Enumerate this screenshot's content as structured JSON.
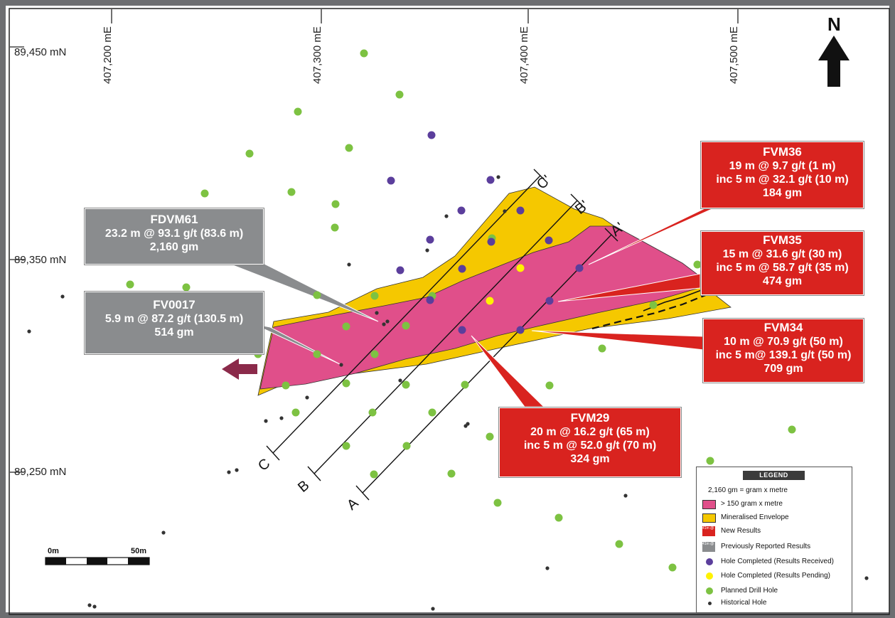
{
  "north_label": "N",
  "easting_labels": [
    "407,200 mE",
    "407,300 mE",
    "407,400 mE",
    "407,500 mE"
  ],
  "northing_labels": [
    "89,450 mN",
    "89,350 mN",
    "89,250 mN"
  ],
  "section_labels": [
    "C",
    "C'",
    "B",
    "B'",
    "A",
    "A'"
  ],
  "scale": {
    "start": "0m",
    "end": "50m"
  },
  "callouts": {
    "fvm36": {
      "title": "FVM36",
      "lines": [
        "19 m @ 9.7 g/t (1 m)",
        "inc 5 m @ 32.1 g/t (10 m)",
        "184 gm"
      ]
    },
    "fvm35": {
      "title": "FVM35",
      "lines": [
        "15 m @ 31.6 g/t (30 m)",
        "inc 5 m @ 58.7 g/t (35 m)",
        "474 gm"
      ]
    },
    "fvm34": {
      "title": "FVM34",
      "lines": [
        "10 m @ 70.9 g/t (50 m)",
        "inc 5 m@ 139.1 g/t (50 m)",
        "709 gm"
      ]
    },
    "fvm29": {
      "title": "FVM29",
      "lines": [
        "20 m @ 16.2 g/t (65 m)",
        "inc 5 m @ 52.0 g/t (70 m)",
        "324 gm"
      ]
    },
    "fdvm61": {
      "title": "FDVM61",
      "lines": [
        "23.2 m @ 93.1 g/t (83.6 m)",
        "2,160 gm"
      ]
    },
    "fv0017": {
      "title": "FV0017",
      "lines": [
        "5.9 m @ 87.2 g/t (130.5 m)",
        "514 gm"
      ]
    }
  },
  "legend": {
    "title": "LEGEND",
    "note": "2,160 gm = gram x metre",
    "items": [
      {
        "label": "> 150 gram x metre",
        "color": "#e04f8a"
      },
      {
        "label": "Mineralised Envelope",
        "color": "#f5c800"
      },
      {
        "label": "New Results",
        "color": "#d9231f"
      },
      {
        "label": "Previously Reported Results",
        "color": "#8a8c8e"
      },
      {
        "label": "Hole Completed (Results Received)",
        "color": "#5b3e9c"
      },
      {
        "label": "Hole Completed (Results Pending)",
        "color": "#fff200"
      },
      {
        "label": "Planned Drill Hole",
        "color": "#7dc242"
      },
      {
        "label": "Historical Hole",
        "color": "#333333"
      }
    ],
    "mini_text": "41m @ 5.2 g/t"
  },
  "colors": {
    "border": "#6d6e71",
    "envelope": "#f5c800",
    "high_grade": "#e04f8a",
    "planned": "#7dc242",
    "completed": "#5b3e9c",
    "pending": "#fff200",
    "historical": "#333333",
    "arrow": "#8b2a4a"
  }
}
